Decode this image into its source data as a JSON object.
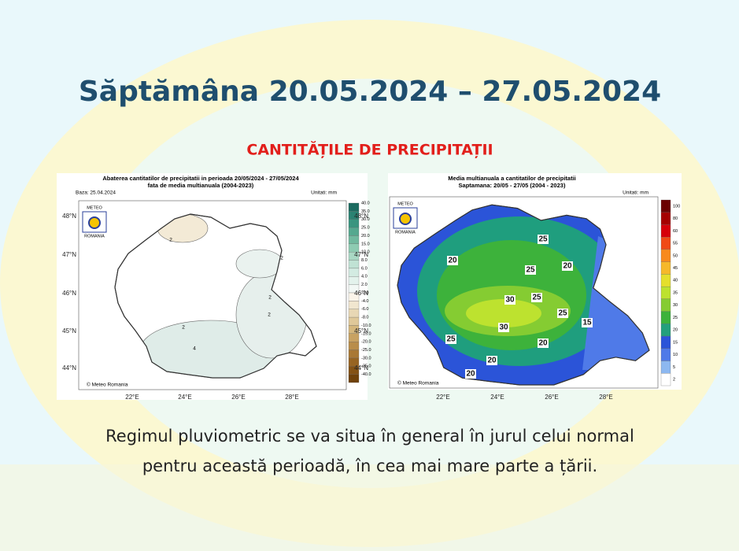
{
  "title": "Săptămâna 20.05.2024 – 27.05.2024",
  "subtitle": "CANTITĂȚILE DE PRECIPITAȚII",
  "maps": [
    {
      "title_lines": [
        "Abaterea cantitatilor de precipitatii in perioada 20/05/2024 - 27/05/2024",
        "fata de media multianuala (2004-2023)"
      ],
      "base": "Baza: 25.04.2024",
      "units": "Unitati: mm",
      "logo": [
        "METEO",
        "ROMANIA"
      ],
      "credit": "© Meteo Romania",
      "legend": [
        "40.0",
        "35.0",
        "30.0",
        "25.0",
        "20.0",
        "15.0",
        "10.0",
        "8.0",
        "6.0",
        "4.0",
        "2.0",
        "-2.0",
        "-4.0",
        "-6.0",
        "-8.0",
        "-10.0",
        "-15.0",
        "-20.0",
        "-25.0",
        "-30.0",
        "-35.0",
        "-40.0"
      ],
      "lat_labels": [
        "48°N",
        "47°N",
        "46°N",
        "45°N",
        "44°N"
      ],
      "lon_labels": [
        "22°E",
        "24°E",
        "26°E",
        "28°E"
      ],
      "contour_labels": [
        "2",
        "2",
        "2",
        "2",
        "2",
        "4"
      ]
    },
    {
      "title_lines": [
        "Media multianuala a cantitatilor de precipitatii",
        "Saptamana: 20/05 - 27/05 (2004 - 2023)"
      ],
      "units": "Unitati: mm",
      "logo": [
        "METEO",
        "ROMANIA"
      ],
      "credit": "© Meteo Romania",
      "legend": [
        "100",
        "80",
        "60",
        "55",
        "50",
        "45",
        "40",
        "35",
        "30",
        "25",
        "20",
        "15",
        "10",
        "5",
        "2"
      ],
      "lat_labels": [
        "48°N",
        "47°N",
        "46°N",
        "45°N",
        "44°N"
      ],
      "lon_labels": [
        "22°E",
        "24°E",
        "26°E",
        "28°E"
      ],
      "contour_labels": [
        "25",
        "20",
        "25",
        "20",
        "30",
        "25",
        "30",
        "25",
        "15",
        "25",
        "20",
        "20",
        "20"
      ]
    }
  ],
  "body_lines": [
    "Regimul pluviometric se va situa în general în jurul celui normal",
    "pentru această perioadă, în cea mai mare parte a țării."
  ]
}
